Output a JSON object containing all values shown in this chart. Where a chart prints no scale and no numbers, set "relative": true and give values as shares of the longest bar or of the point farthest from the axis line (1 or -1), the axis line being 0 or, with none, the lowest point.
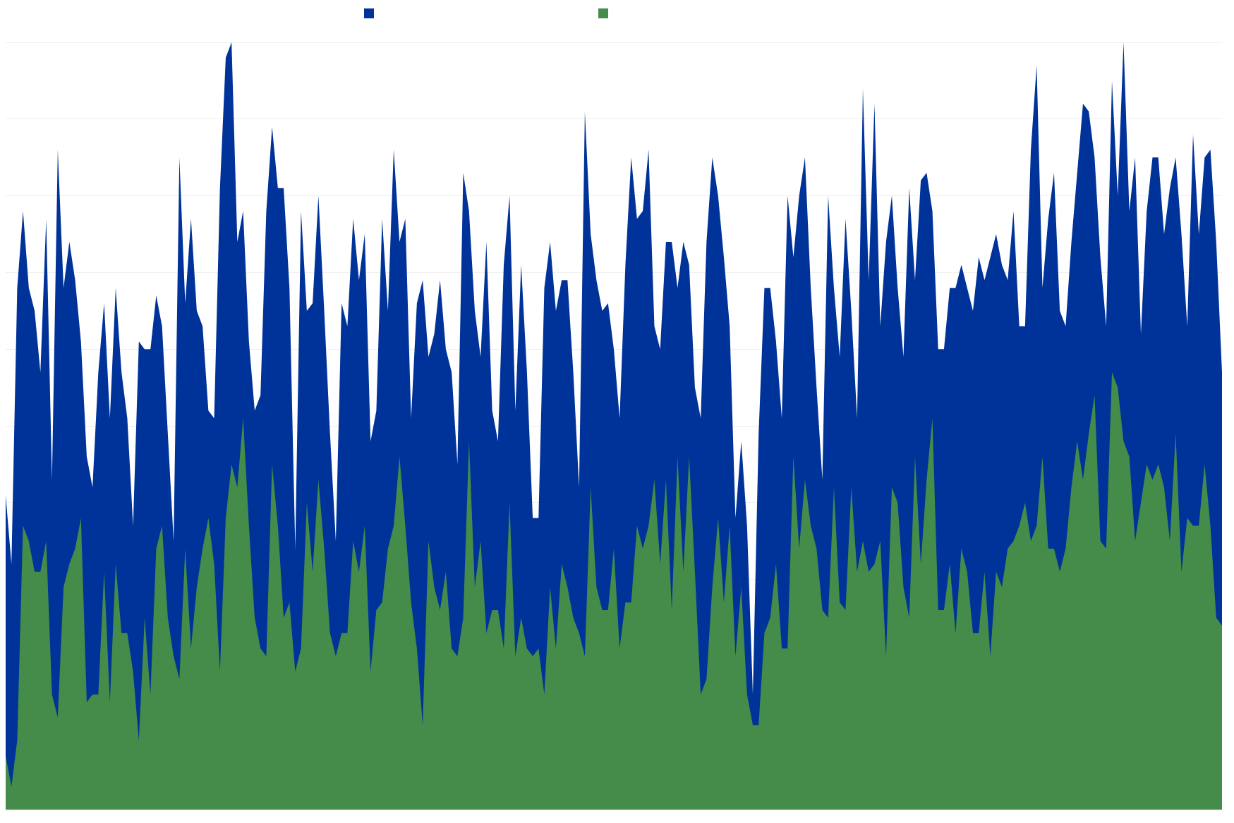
{
  "chart_data": {
    "type": "area",
    "relative": true,
    "grid": "y",
    "categories": [
      null,
      null,
      null,
      null,
      null,
      null,
      null,
      null,
      null,
      null,
      null,
      null,
      null,
      null,
      null,
      null,
      null,
      null,
      null,
      null,
      null,
      null,
      null,
      null,
      null,
      null,
      null,
      null,
      null,
      null,
      null,
      null,
      null,
      null,
      null,
      null,
      null,
      null,
      null,
      null,
      null,
      null,
      null,
      null,
      null,
      null,
      null,
      null,
      null,
      null,
      null,
      null,
      null,
      null,
      null,
      null,
      null,
      null,
      null,
      null,
      null,
      null,
      null,
      null,
      null,
      null,
      null,
      null,
      null,
      null,
      null,
      null,
      null,
      null,
      null,
      null,
      null,
      null,
      null,
      null,
      null,
      null,
      null,
      null,
      null,
      null,
      null,
      null,
      null,
      null,
      null,
      null,
      null,
      null,
      null,
      null,
      null,
      null,
      null,
      null,
      null,
      null,
      null,
      null,
      null,
      null,
      null,
      null,
      null,
      null,
      null,
      null,
      null,
      null,
      null,
      null,
      null,
      null,
      null,
      null,
      null,
      null,
      null,
      null,
      null,
      null,
      null,
      null,
      null,
      null,
      null,
      null,
      null,
      null,
      null,
      null,
      null,
      null,
      null,
      null,
      null,
      null,
      null,
      null,
      null,
      null,
      null,
      null,
      null,
      null,
      null,
      null,
      null,
      null,
      null,
      null,
      null,
      null,
      null,
      null,
      null,
      null,
      null,
      null,
      null,
      null,
      null,
      null,
      null,
      null,
      null,
      null,
      null,
      null,
      null,
      null,
      null,
      null,
      null,
      null,
      null,
      null,
      null,
      null,
      null,
      null,
      null,
      null,
      null,
      null,
      null,
      null,
      null,
      null,
      null,
      null,
      null,
      null,
      null,
      null,
      null,
      null,
      null,
      null,
      null,
      null,
      null,
      null,
      null,
      null,
      null
    ],
    "series": [
      {
        "color": "#003399",
        "values": [
          0.41,
          0.32,
          0.68,
          0.78,
          0.68,
          0.65,
          0.57,
          0.77,
          0.43,
          0.86,
          0.68,
          0.74,
          0.69,
          0.61,
          0.46,
          0.42,
          0.57,
          0.66,
          0.51,
          0.68,
          0.57,
          0.51,
          0.37,
          0.61,
          0.6,
          0.6,
          0.67,
          0.63,
          0.49,
          0.35,
          0.85,
          0.66,
          0.77,
          0.65,
          0.63,
          0.52,
          0.51,
          0.81,
          0.98,
          1,
          0.74,
          0.78,
          0.61,
          0.52,
          0.54,
          0.78,
          0.89,
          0.81,
          0.81,
          0.68,
          0.34,
          0.78,
          0.65,
          0.66,
          0.8,
          0.65,
          0.49,
          0.35,
          0.66,
          0.63,
          0.77,
          0.69,
          0.75,
          0.48,
          0.52,
          0.77,
          0.65,
          0.86,
          0.74,
          0.77,
          0.51,
          0.66,
          0.69,
          0.59,
          0.62,
          0.69,
          0.6,
          0.57,
          0.45,
          0.83,
          0.78,
          0.65,
          0.59,
          0.74,
          0.52,
          0.48,
          0.71,
          0.8,
          0.52,
          0.71,
          0.57,
          0.38,
          0.38,
          0.68,
          0.74,
          0.65,
          0.69,
          0.69,
          0.57,
          0.42,
          0.91,
          0.75,
          0.69,
          0.65,
          0.66,
          0.6,
          0.51,
          0.71,
          0.85,
          0.77,
          0.78,
          0.86,
          0.63,
          0.6,
          0.74,
          0.74,
          0.68,
          0.74,
          0.71,
          0.55,
          0.51,
          0.74,
          0.85,
          0.8,
          0.72,
          0.63,
          0.38,
          0.48,
          0.37,
          0.15,
          0.49,
          0.68,
          0.68,
          0.61,
          0.51,
          0.8,
          0.72,
          0.8,
          0.85,
          0.68,
          0.55,
          0.43,
          0.8,
          0.68,
          0.59,
          0.77,
          0.65,
          0.51,
          0.94,
          0.69,
          0.92,
          0.63,
          0.74,
          0.8,
          0.68,
          0.59,
          0.81,
          0.69,
          0.82,
          0.83,
          0.78,
          0.6,
          0.6,
          0.68,
          0.68,
          0.71,
          0.68,
          0.65,
          0.72,
          0.69,
          0.72,
          0.75,
          0.71,
          0.69,
          0.78,
          0.63,
          0.63,
          0.86,
          0.97,
          0.68,
          0.77,
          0.83,
          0.65,
          0.63,
          0.74,
          0.83,
          0.92,
          0.91,
          0.85,
          0.72,
          0.63,
          0.95,
          0.8,
          1,
          0.78,
          0.85,
          0.62,
          0.78,
          0.85,
          0.85,
          0.75,
          0.81,
          0.85,
          0.75,
          0.63,
          0.88,
          0.75,
          0.85,
          0.86,
          0.74,
          0.57
        ]
      },
      {
        "color": "#458b4a",
        "values": [
          0.07,
          0.03,
          0.09,
          0.37,
          0.35,
          0.31,
          0.31,
          0.35,
          0.15,
          0.12,
          0.29,
          0.32,
          0.34,
          0.38,
          0.14,
          0.15,
          0.15,
          0.31,
          0.14,
          0.32,
          0.23,
          0.23,
          0.18,
          0.09,
          0.25,
          0.15,
          0.34,
          0.37,
          0.25,
          0.2,
          0.17,
          0.34,
          0.21,
          0.29,
          0.34,
          0.38,
          0.32,
          0.18,
          0.38,
          0.45,
          0.42,
          0.51,
          0.37,
          0.25,
          0.21,
          0.2,
          0.45,
          0.37,
          0.25,
          0.27,
          0.18,
          0.21,
          0.4,
          0.31,
          0.43,
          0.34,
          0.23,
          0.2,
          0.23,
          0.23,
          0.35,
          0.31,
          0.37,
          0.18,
          0.26,
          0.27,
          0.34,
          0.37,
          0.46,
          0.37,
          0.27,
          0.21,
          0.11,
          0.35,
          0.29,
          0.26,
          0.31,
          0.21,
          0.2,
          0.25,
          0.48,
          0.29,
          0.35,
          0.23,
          0.26,
          0.26,
          0.21,
          0.4,
          0.2,
          0.25,
          0.21,
          0.2,
          0.21,
          0.15,
          0.29,
          0.21,
          0.32,
          0.29,
          0.25,
          0.23,
          0.2,
          0.42,
          0.29,
          0.26,
          0.26,
          0.34,
          0.21,
          0.27,
          0.27,
          0.37,
          0.34,
          0.37,
          0.43,
          0.32,
          0.43,
          0.26,
          0.46,
          0.31,
          0.46,
          0.31,
          0.15,
          0.17,
          0.29,
          0.38,
          0.27,
          0.37,
          0.2,
          0.29,
          0.15,
          0.11,
          0.11,
          0.23,
          0.25,
          0.32,
          0.21,
          0.21,
          0.46,
          0.34,
          0.43,
          0.37,
          0.34,
          0.26,
          0.25,
          0.42,
          0.27,
          0.26,
          0.42,
          0.31,
          0.35,
          0.31,
          0.32,
          0.35,
          0.2,
          0.42,
          0.4,
          0.29,
          0.25,
          0.46,
          0.32,
          0.43,
          0.51,
          0.26,
          0.26,
          0.32,
          0.23,
          0.34,
          0.31,
          0.23,
          0.23,
          0.31,
          0.2,
          0.31,
          0.29,
          0.34,
          0.35,
          0.37,
          0.4,
          0.35,
          0.37,
          0.46,
          0.34,
          0.34,
          0.31,
          0.34,
          0.42,
          0.48,
          0.43,
          0.49,
          0.54,
          0.35,
          0.34,
          0.57,
          0.55,
          0.48,
          0.46,
          0.35,
          0.4,
          0.45,
          0.43,
          0.45,
          0.42,
          0.35,
          0.49,
          0.31,
          0.38,
          0.37,
          0.37,
          0.45,
          0.37,
          0.25,
          0.24
        ]
      }
    ]
  }
}
